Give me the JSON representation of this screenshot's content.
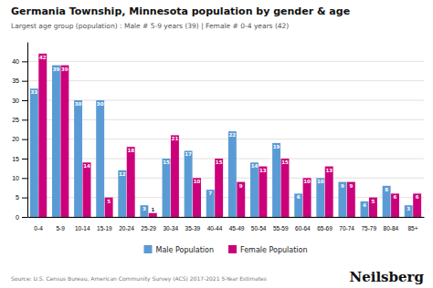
{
  "chart_data": {
    "type": "bar",
    "title": "Germania Township, Minnesota population by gender & age",
    "subtitle": "Largest age group (population) : Male # 5-9 years (39) | Female # 0-4 years (42)",
    "categories": [
      "0-4",
      "5-9",
      "10-14",
      "15-19",
      "20-24",
      "25-29",
      "30-34",
      "35-39",
      "40-44",
      "45-49",
      "50-54",
      "55-59",
      "60-64",
      "65-69",
      "70-74",
      "75-79",
      "80-84",
      "85+"
    ],
    "series": [
      {
        "name": "Male Population",
        "color": "#5B9BD5",
        "values": [
          33,
          39,
          30,
          30,
          12,
          3,
          15,
          17,
          7,
          22,
          14,
          19,
          6,
          10,
          9,
          4,
          8,
          3
        ]
      },
      {
        "name": "Female Population",
        "color": "#CC007A",
        "values": [
          42,
          39,
          14,
          5,
          18,
          1,
          21,
          10,
          15,
          9,
          13,
          15,
          10,
          13,
          9,
          5,
          6,
          6
        ]
      }
    ],
    "ylim": [
      0,
      45
    ],
    "yticks": [
      0,
      5,
      10,
      15,
      20,
      25,
      30,
      35,
      40
    ],
    "grid": true,
    "legend": "bottom",
    "data_labels": true,
    "annotations": [
      "Source: U.S. Census Bureau, American Community Survey (ACS) 2017-2021 5-Year Estimates",
      "Neilsberg"
    ]
  }
}
